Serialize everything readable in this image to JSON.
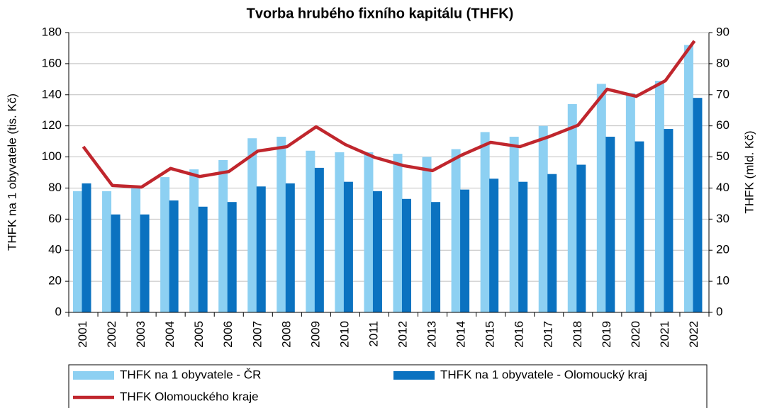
{
  "chart_data": {
    "type": "bar_line",
    "title": "Tvorba hrubého fixního kapitálu (THFK)",
    "y_label": "THFK na 1 obyvatele (tis. Kč)",
    "y2_label": "THFK (mld. Kč)",
    "categories": [
      "2001",
      "2002",
      "2003",
      "2004",
      "2005",
      "2006",
      "2007",
      "2008",
      "2009",
      "2010",
      "2011",
      "2012",
      "2013",
      "2014",
      "2015",
      "2016",
      "2017",
      "2018",
      "2019",
      "2020",
      "2021",
      "2022"
    ],
    "series": [
      {
        "name": "THFK na 1 obyvatele - ČR",
        "kind": "bar",
        "color": "#8dd0f2",
        "values": [
          78,
          78,
          80,
          87,
          92,
          98,
          112,
          113,
          104,
          103,
          103,
          102,
          100,
          105,
          116,
          113,
          120,
          134,
          147,
          141,
          149,
          172
        ]
      },
      {
        "name": "THFK na 1 obyvatele - Olomoucký kraj",
        "kind": "bar",
        "color": "#0b72c0",
        "values": [
          83,
          63,
          63,
          72,
          68,
          71,
          81,
          83,
          93,
          84,
          78,
          73,
          71,
          79,
          86,
          84,
          89,
          95,
          113,
          110,
          118,
          138
        ]
      },
      {
        "name": "THFK Olomouckého kraje",
        "kind": "line",
        "axis": "y2",
        "color": "#c0262d",
        "values": [
          53.3,
          40.8,
          40.3,
          46.3,
          43.7,
          45.3,
          51.9,
          53.3,
          59.7,
          54.0,
          49.9,
          47.2,
          45.6,
          50.6,
          54.7,
          53.3,
          56.5,
          60.2,
          71.8,
          69.5,
          74.5,
          87.3
        ]
      }
    ],
    "ylim": [
      0,
      180
    ],
    "yticks": [
      0,
      20,
      40,
      60,
      80,
      100,
      120,
      140,
      160,
      180
    ],
    "y2lim": [
      0,
      90
    ],
    "y2ticks": [
      0,
      10,
      20,
      30,
      40,
      50,
      60,
      70,
      80,
      90
    ],
    "grid": true
  }
}
